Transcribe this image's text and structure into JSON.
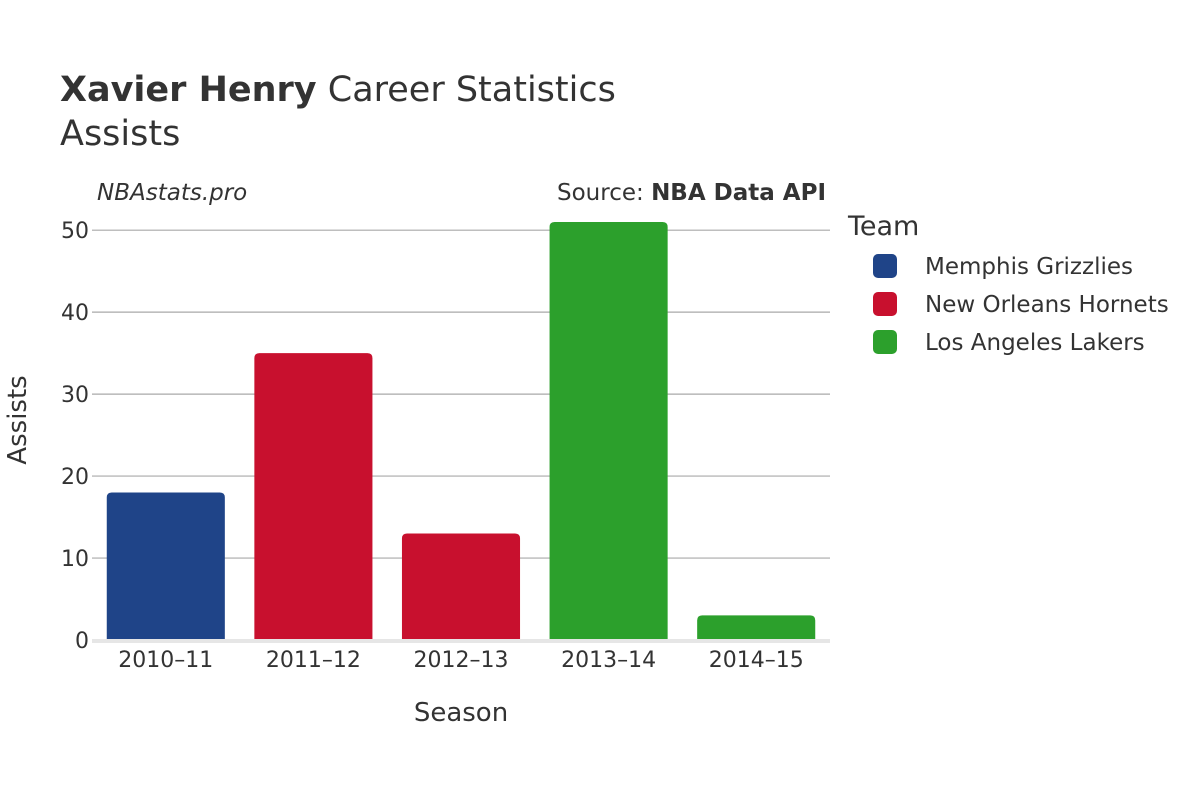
{
  "title": {
    "player": "Xavier Henry",
    "rest": " Career Statistics",
    "subtitle": "Assists"
  },
  "watermark": "NBAstats.pro",
  "source": {
    "prefix": "Source: ",
    "name": "NBA Data API"
  },
  "legend": {
    "title": "Team",
    "items": [
      {
        "label": "Memphis Grizzlies",
        "color": "#1f4488"
      },
      {
        "label": "New Orleans Hornets",
        "color": "#c8102e"
      },
      {
        "label": "Los Angeles Lakers",
        "color": "#2ca02c"
      }
    ]
  },
  "chart_data": {
    "type": "bar",
    "title": "Xavier Henry Career Statistics",
    "subtitle": "Assists",
    "xlabel": "Season",
    "ylabel": "Assists",
    "categories": [
      "2010–11",
      "2011–12",
      "2012–13",
      "2013–14",
      "2014–15"
    ],
    "values": [
      18,
      35,
      13,
      51,
      3
    ],
    "teams": [
      "Memphis Grizzlies",
      "New Orleans Hornets",
      "New Orleans Hornets",
      "Los Angeles Lakers",
      "Los Angeles Lakers"
    ],
    "colors": [
      "#1f4488",
      "#c8102e",
      "#c8102e",
      "#2ca02c",
      "#2ca02c"
    ],
    "ylim": [
      0,
      51
    ],
    "yticks": [
      0,
      10,
      20,
      30,
      40,
      50
    ],
    "grid": true,
    "legend_position": "right"
  }
}
